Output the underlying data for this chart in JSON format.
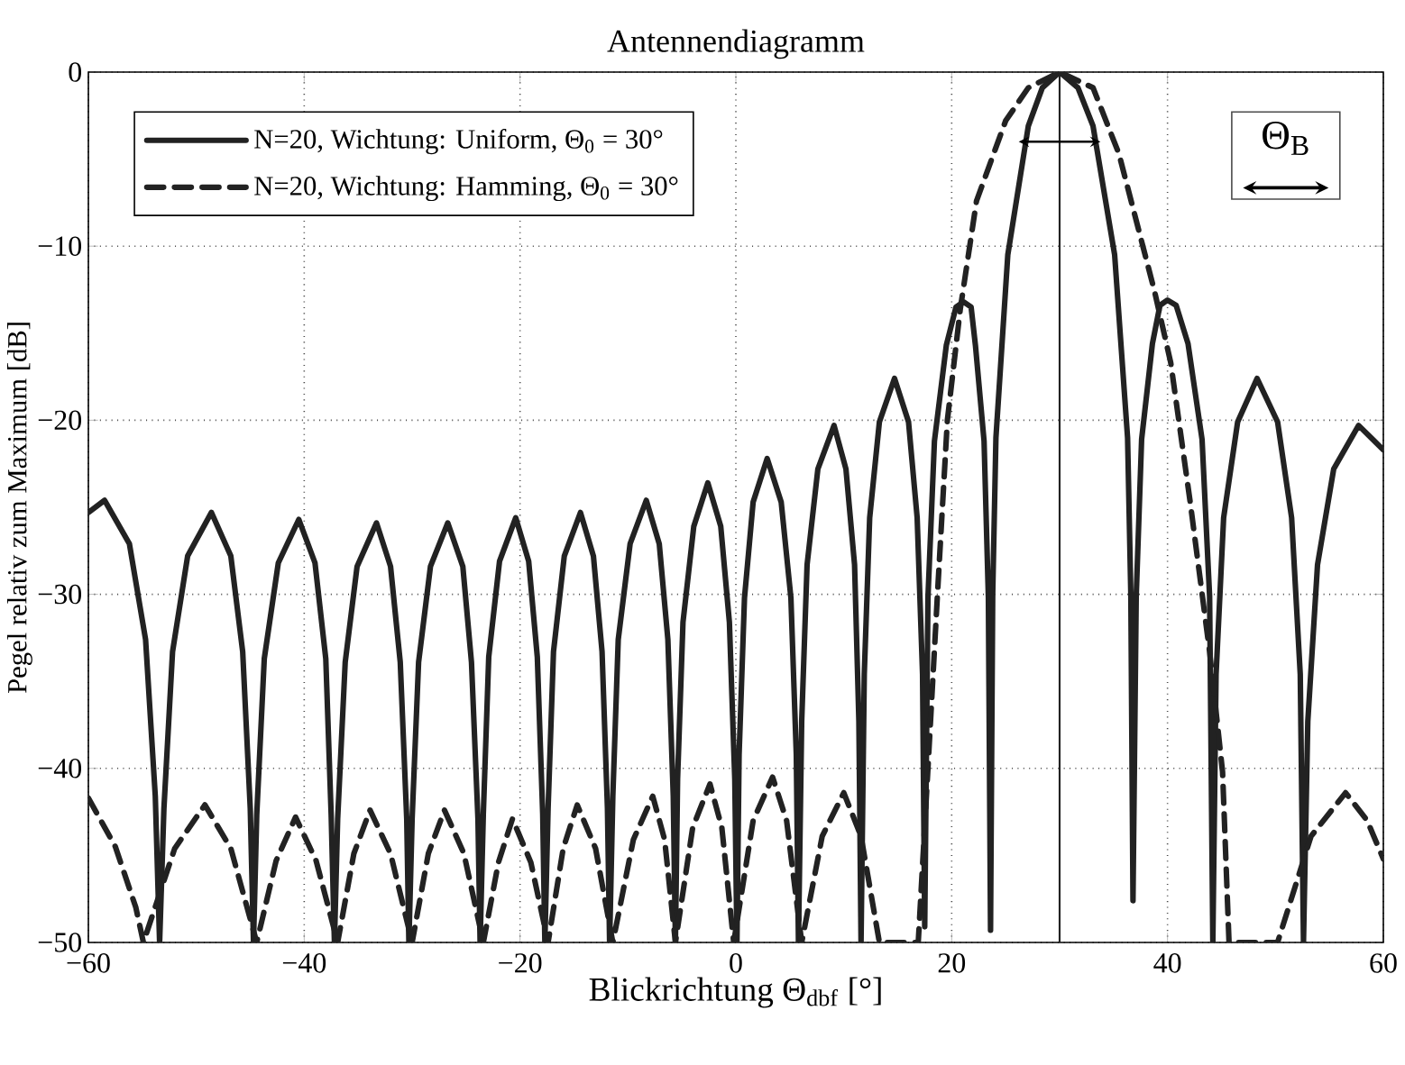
{
  "chart_data": {
    "type": "line",
    "title": "Antennendiagramm",
    "xlabel": "Blickrichtung Θ$_{dbf}$ [°]",
    "ylabel": "Pegel relativ zum Maximum [dB]",
    "xlim": [
      -60,
      60
    ],
    "ylim": [
      -50,
      0
    ],
    "xticks": [
      {
        "value": -60,
        "label": "−60"
      },
      {
        "value": -40,
        "label": "−40"
      },
      {
        "value": -20,
        "label": "−20"
      },
      0,
      20,
      40,
      60
    ],
    "yticks": [
      {
        "value": -50,
        "label": "−50"
      },
      {
        "value": -40,
        "label": "−40"
      },
      {
        "value": -30,
        "label": "−30"
      },
      {
        "value": -20,
        "label": "−20"
      },
      {
        "value": -10,
        "label": "−10"
      },
      0
    ],
    "grid": true,
    "legend": "top left",
    "ref_lines": [
      {
        "axis": "x",
        "value": 30,
        "color": "#222222"
      }
    ],
    "annotations": [
      "Θ$_{B}$"
    ],
    "series": [
      {
        "name": "N=20, Wichtung: Uniform, Θ$_{0}$ = 30°",
        "color": "#222222",
        "line_style": "solid",
        "x": [
          -60,
          -58.5,
          -56.2,
          -54.7,
          -53.8,
          -53.4,
          -53.0,
          -52.2,
          -50.8,
          -48.6,
          -46.8,
          -45.7,
          -45.0,
          -44.7,
          -44.4,
          -43.7,
          -42.4,
          -40.5,
          -39.0,
          -38.0,
          -37.5,
          -37.2,
          -36.9,
          -36.2,
          -35.1,
          -33.3,
          -32.0,
          -31.1,
          -30.5,
          -30.3,
          -30.0,
          -29.4,
          -28.3,
          -26.7,
          -25.3,
          -24.5,
          -23.9,
          -23.7,
          -23.4,
          -22.9,
          -21.9,
          -20.4,
          -19.2,
          -18.4,
          -17.9,
          -17.7,
          -17.4,
          -16.9,
          -15.9,
          -14.4,
          -13.2,
          -12.4,
          -11.9,
          -11.7,
          -11.4,
          -10.9,
          -9.8,
          -8.3,
          -7.1,
          -6.3,
          -5.8,
          -5.6,
          -5.4,
          -4.9,
          -3.9,
          -2.6,
          -1.4,
          -0.6,
          -0.1,
          0.1,
          0.3,
          0.8,
          1.6,
          2.9,
          4.2,
          5.1,
          5.6,
          5.8,
          6.1,
          6.6,
          7.6,
          9.1,
          10.2,
          11.0,
          11.4,
          11.6,
          11.9,
          12.4,
          13.3,
          14.7,
          16.0,
          16.8,
          17.3,
          17.5,
          17.8,
          18.4,
          19.5,
          20.4,
          21.1,
          21.8,
          22.2,
          23.0,
          23.4,
          23.6,
          23.8,
          24.1,
          25.2,
          27.1,
          28.4,
          30,
          31.7,
          33.1,
          35.1,
          36.3,
          36.6,
          36.8,
          37.1,
          37.6,
          38.6,
          39.3,
          40.0,
          40.8,
          41.9,
          43.2,
          43.9,
          44.2,
          44.5,
          45.2,
          46.5,
          48.3,
          50.2,
          51.5,
          52.3,
          52.6,
          53.0,
          53.9,
          55.4,
          57.7,
          60
        ],
        "values": [
          -25.3,
          -24.6,
          -27.1,
          -32.6,
          -41.6,
          -50,
          -42.3,
          -33.3,
          -27.8,
          -25.3,
          -27.8,
          -33.3,
          -42.3,
          -50,
          -42.7,
          -33.7,
          -28.2,
          -25.7,
          -28.2,
          -33.7,
          -42.7,
          -50,
          -42.9,
          -33.9,
          -28.4,
          -25.9,
          -28.4,
          -33.9,
          -42.9,
          -50,
          -42.9,
          -33.9,
          -28.4,
          -25.9,
          -28.4,
          -33.9,
          -42.9,
          -50,
          -42.6,
          -33.6,
          -28.1,
          -25.6,
          -28.1,
          -33.6,
          -42.6,
          -50,
          -42.3,
          -33.3,
          -27.8,
          -25.3,
          -27.8,
          -33.3,
          -42.3,
          -50,
          -41.6,
          -32.6,
          -27.1,
          -24.6,
          -27.1,
          -32.6,
          -41.6,
          -50,
          -40.6,
          -31.6,
          -26.1,
          -23.6,
          -26.1,
          -31.6,
          -40.6,
          -50,
          -39.2,
          -30.2,
          -24.7,
          -22.2,
          -24.7,
          -30.2,
          -39.2,
          -50,
          -37.3,
          -28.3,
          -22.8,
          -20.3,
          -22.8,
          -28.3,
          -37.3,
          -50,
          -34.6,
          -25.6,
          -20.1,
          -17.6,
          -20.1,
          -25.6,
          -34.6,
          -49.1,
          -30.2,
          -21.2,
          -15.7,
          -13.5,
          -13.2,
          -13.5,
          -15.7,
          -21.2,
          -30.2,
          -49.3,
          -30,
          -21,
          -10.5,
          -3.1,
          -0.9,
          0,
          -0.9,
          -3.1,
          -10.5,
          -21,
          -30,
          -47.6,
          -30.1,
          -21.1,
          -15.6,
          -13.4,
          -13.1,
          -13.4,
          -15.6,
          -21.1,
          -30.1,
          -50,
          -34.6,
          -25.6,
          -20.1,
          -17.6,
          -20.1,
          -25.6,
          -34.6,
          -50,
          -37.3,
          -28.3,
          -22.8,
          -20.3,
          -21.7
        ]
      },
      {
        "name": "N=20, Wichtung: Hamming, Θ$_{0}$ = 30°",
        "color": "#222222",
        "line_style": "dashed",
        "x": [
          -60,
          -57.5,
          -55.6,
          -54.9,
          -52.0,
          -49.2,
          -46.8,
          -44.4,
          -42.6,
          -40.8,
          -38.9,
          -36.9,
          -35.4,
          -33.9,
          -32.0,
          -30.0,
          -28.5,
          -27.0,
          -25.2,
          -23.4,
          -22.0,
          -20.7,
          -19.0,
          -17.4,
          -16.0,
          -14.7,
          -13.0,
          -11.4,
          -9.5,
          -7.7,
          -6.6,
          -5.6,
          -4.0,
          -2.4,
          -1.3,
          -0.2,
          1.6,
          3.4,
          4.7,
          6.1,
          8.0,
          10.0,
          11.6,
          13.3,
          16.9,
          17.8,
          18.7,
          19.6,
          20.8,
          22.3,
          25.0,
          27.1,
          30,
          33.1,
          35.5,
          38.8,
          40.3,
          42.1,
          43.9,
          45.1,
          45.7,
          50.2,
          53.3,
          56.5,
          58.5,
          60
        ],
        "values": [
          -41.7,
          -44.5,
          -48,
          -50,
          -44.6,
          -42.1,
          -44.6,
          -50,
          -45.3,
          -42.8,
          -45.3,
          -50,
          -44.9,
          -42.4,
          -44.9,
          -50,
          -44.9,
          -42.4,
          -44.9,
          -50,
          -45.4,
          -42.9,
          -45.4,
          -50,
          -44.6,
          -42.1,
          -44.6,
          -50,
          -44.1,
          -41.6,
          -44.1,
          -50,
          -43.4,
          -40.9,
          -43.4,
          -50,
          -43,
          -40.5,
          -43,
          -50,
          -43.9,
          -41.4,
          -43.9,
          -50,
          -50,
          -40,
          -29.8,
          -20,
          -13.6,
          -7.4,
          -2.8,
          -0.9,
          0,
          -0.9,
          -4.7,
          -12.6,
          -16.7,
          -24.7,
          -33.3,
          -40.2,
          -50,
          -50,
          -43.9,
          -41.4,
          -43,
          -45.2
        ]
      }
    ]
  }
}
